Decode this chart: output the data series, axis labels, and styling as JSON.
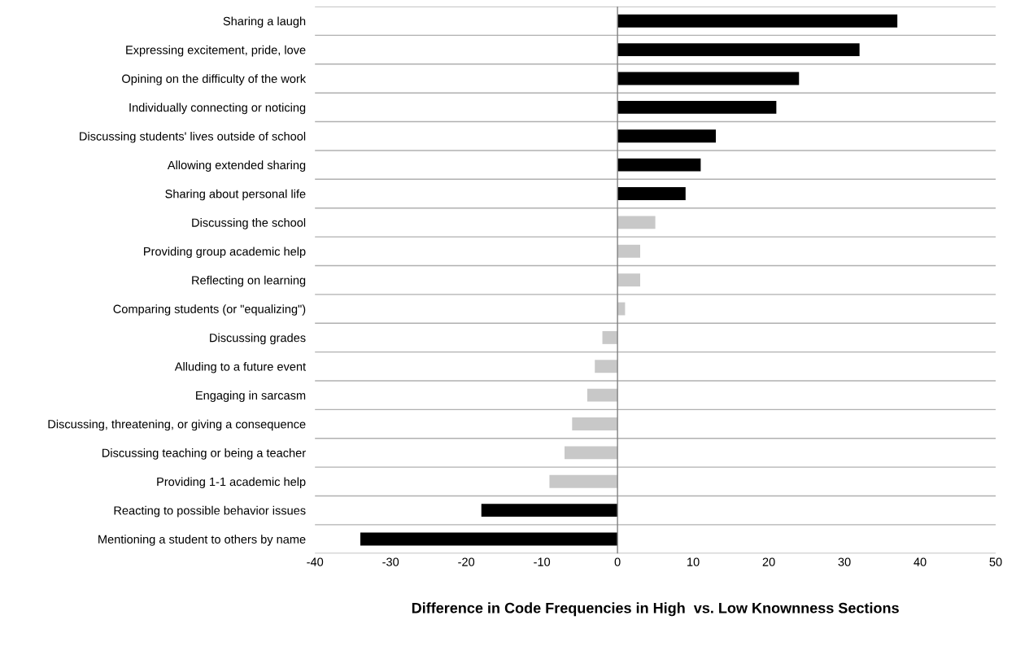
{
  "chart_data": {
    "type": "bar",
    "orientation": "horizontal",
    "xlabel": "Difference in Code Frequencies in High  vs. Low Knownness Sections",
    "categories": [
      "Sharing a laugh",
      "Expressing excitement, pride, love",
      "Opining on the difficulty of the work",
      "Individually connecting or noticing",
      "Discussing students' lives outside of school",
      "Allowing extended sharing",
      "Sharing about personal life",
      "Discussing the school",
      "Providing group academic help",
      "Reflecting on learning",
      "Comparing students (or \"equalizing\")",
      "Discussing grades",
      "Alluding to a future event",
      "Engaging in sarcasm",
      "Discussing, threatening, or giving a consequence",
      "Discussing teaching or being a teacher",
      "Providing 1-1 academic help",
      "Reacting to possible behavior issues",
      "Mentioning a student to others by name"
    ],
    "values": [
      37,
      32,
      24,
      21,
      13,
      11,
      9,
      5,
      3,
      3,
      1,
      -2,
      -3,
      -4,
      -6,
      -7,
      -9,
      -18,
      -34
    ],
    "colors": [
      "#000000",
      "#000000",
      "#000000",
      "#000000",
      "#000000",
      "#000000",
      "#000000",
      "#c8c8c8",
      "#c8c8c8",
      "#c8c8c8",
      "#c8c8c8",
      "#c8c8c8",
      "#c8c8c8",
      "#c8c8c8",
      "#c8c8c8",
      "#c8c8c8",
      "#c8c8c8",
      "#000000",
      "#000000"
    ],
    "xlim": [
      -40,
      50
    ],
    "xticks": [
      -40,
      -30,
      -20,
      -10,
      0,
      10,
      20,
      30,
      40,
      50
    ],
    "grid": "y"
  }
}
